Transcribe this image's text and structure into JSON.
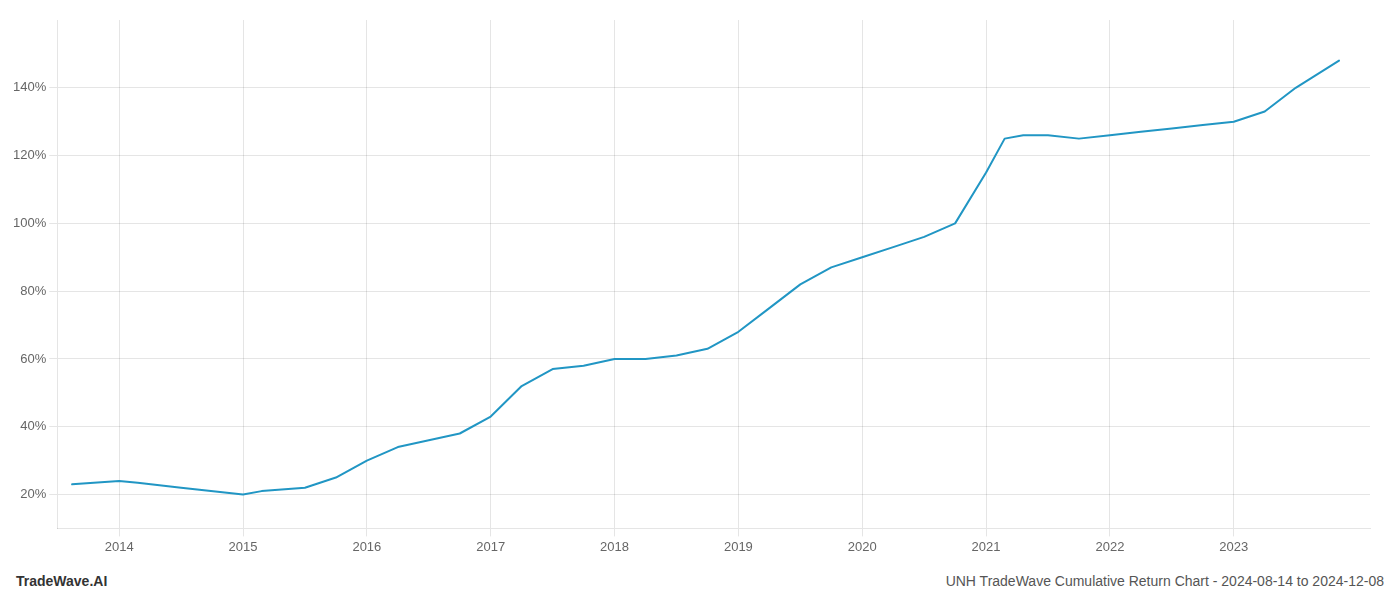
{
  "chart_data": {
    "type": "line",
    "title": "UNH TradeWave Cumulative Return Chart - 2024-08-14 to 2024-12-08",
    "annotations": [
      "TradeWave.AI"
    ],
    "x": [
      2013.62,
      2014.0,
      2014.15,
      2014.5,
      2015.0,
      2015.15,
      2015.5,
      2015.75,
      2016.0,
      2016.25,
      2016.5,
      2016.75,
      2017.0,
      2017.25,
      2017.5,
      2017.75,
      2018.0,
      2018.25,
      2018.5,
      2018.75,
      2019.0,
      2019.25,
      2019.5,
      2019.75,
      2020.0,
      2020.25,
      2020.5,
      2020.75,
      2021.0,
      2021.15,
      2021.3,
      2021.5,
      2021.75,
      2022.0,
      2022.25,
      2022.5,
      2022.75,
      2023.0,
      2023.25,
      2023.5,
      2023.85
    ],
    "values": [
      23,
      24,
      23.5,
      22,
      20,
      21,
      22,
      25,
      30,
      34,
      36,
      38,
      43,
      52,
      57,
      58,
      60,
      60,
      61,
      63,
      68,
      75,
      82,
      87,
      90,
      93,
      96,
      100,
      115,
      125,
      126,
      126,
      125,
      126,
      127,
      128,
      129,
      130,
      133,
      140,
      148
    ],
    "color": "#2196c4",
    "xlim": [
      2013.5,
      2024.1
    ],
    "xticks": [
      2014,
      2015,
      2016,
      2017,
      2018,
      2019,
      2020,
      2021,
      2022,
      2023
    ],
    "ylim": [
      10,
      160
    ],
    "yticks": [
      {
        "value": 20,
        "label": "20%"
      },
      {
        "value": 40,
        "label": "40%"
      },
      {
        "value": 60,
        "label": "60%"
      },
      {
        "value": 80,
        "label": "80%"
      },
      {
        "value": 100,
        "label": "100%"
      },
      {
        "value": 120,
        "label": "120%"
      },
      {
        "value": 140,
        "label": "140%"
      }
    ],
    "grid": true
  }
}
